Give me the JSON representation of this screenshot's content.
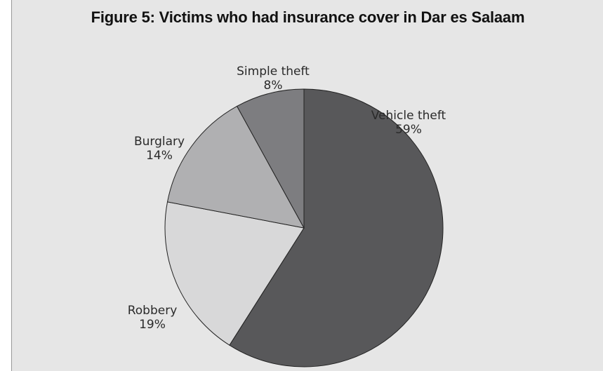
{
  "chart_data": {
    "type": "pie",
    "title": "Figure 5: Victims who had insurance cover in Dar es Salaam",
    "slices": [
      {
        "label": "Vehicle theft",
        "value": 59,
        "display": "59%",
        "color": "#58585a"
      },
      {
        "label": "Robbery",
        "value": 19,
        "display": "19%",
        "color": "#d8d8d9"
      },
      {
        "label": "Burglary",
        "value": 14,
        "display": "14%",
        "color": "#b0b0b2"
      },
      {
        "label": "Simple theft",
        "value": 8,
        "display": "8%",
        "color": "#7d7d80"
      }
    ]
  }
}
